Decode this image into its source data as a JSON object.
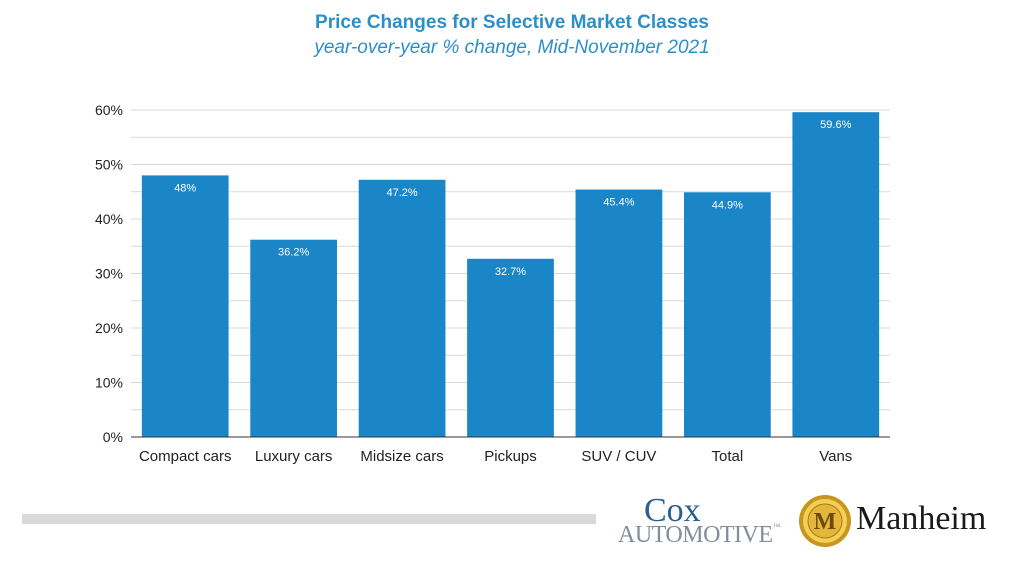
{
  "chart_data": {
    "type": "bar",
    "title": "Price Changes for Selective Market Classes",
    "subtitle": "year-over-year % change, Mid-November 2021",
    "categories": [
      "Compact cars",
      "Luxury cars",
      "Midsize cars",
      "Pickups",
      "SUV / CUV",
      "Total",
      "Vans"
    ],
    "values": [
      48,
      36.2,
      47.2,
      32.7,
      45.4,
      44.9,
      59.6
    ],
    "data_labels": [
      "48%",
      "36.2%",
      "47.2%",
      "32.7%",
      "45.4%",
      "44.9%",
      "59.6%"
    ],
    "ylim": [
      0,
      60
    ],
    "yticks": [
      0,
      10,
      20,
      30,
      40,
      50,
      60
    ],
    "ytick_labels": [
      "0%",
      "10%",
      "20%",
      "30%",
      "40%",
      "50%",
      "60%"
    ],
    "grid": true,
    "bar_color": "#1a86c8",
    "xlabel": "",
    "ylabel": ""
  },
  "logos": {
    "cox_line1": "Cox",
    "cox_line2": "AUTOMOTIVE",
    "cox_tm": "™",
    "manheim_letter": "M",
    "manheim_name": "Manheim"
  },
  "colors": {
    "title": "#2d8fc8",
    "grid": "#d9d9d9",
    "manheim_gold": "#d4a52a"
  }
}
